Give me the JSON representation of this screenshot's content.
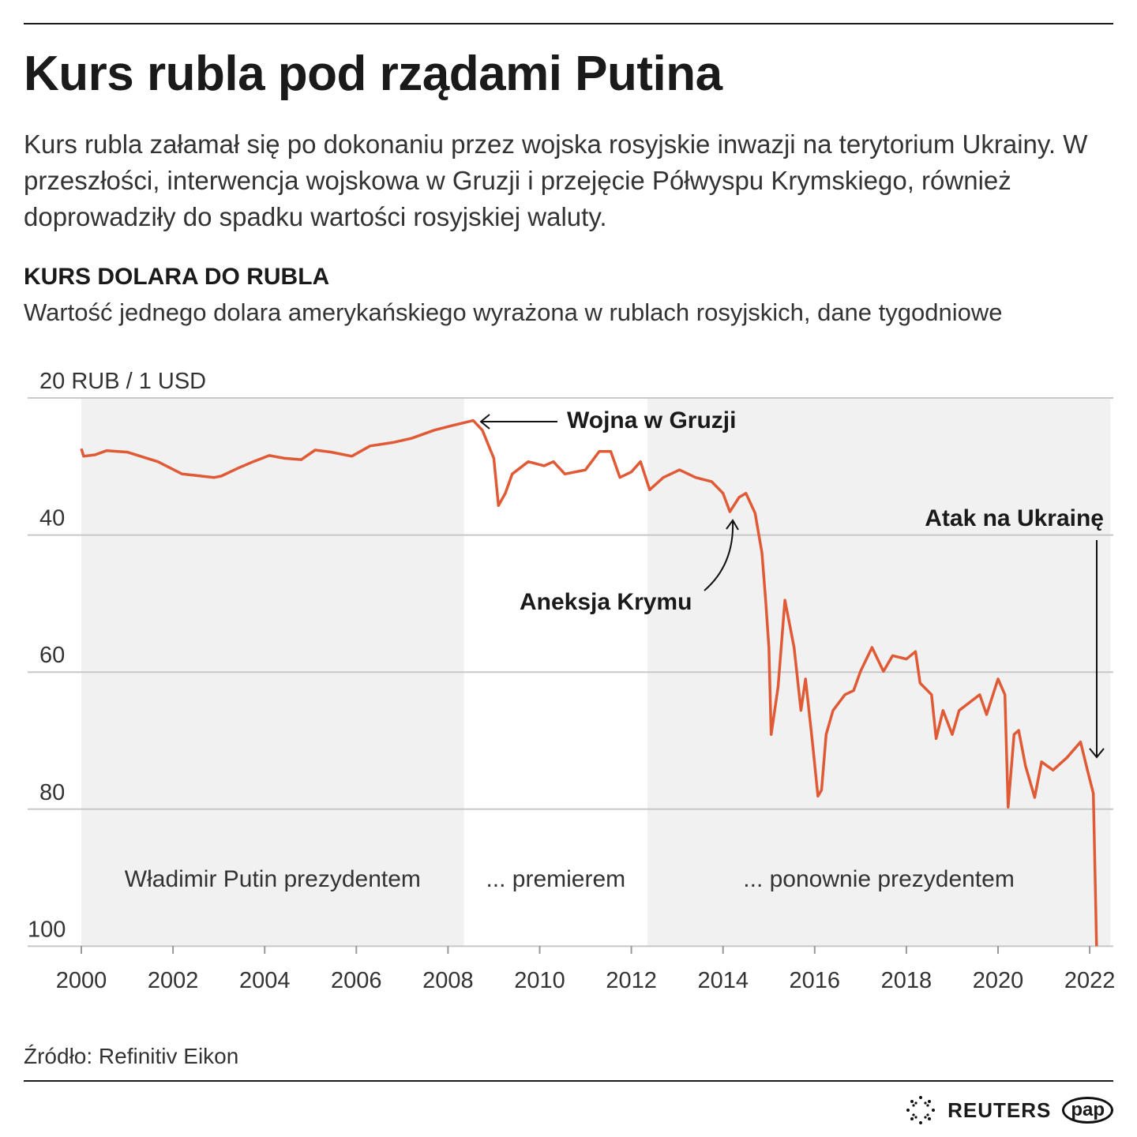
{
  "title": "Kurs rubla pod rządami Putina",
  "lead": "Kurs rubla załamał się po dokonaniu przez wojska rosyjskie inwazji na terytorium Ukrainy. W przeszłości, interwencja wojskowa w Gruzji i przejęcie Półwyspu Krymskiego, również doprowadziły do spadku wartości rosyjskiej waluty.",
  "source": "Źródło: Refinitiv Eikon",
  "logos": {
    "reuters": "REUTERS",
    "pap": "pap"
  },
  "colors": {
    "line": "#e05a35",
    "shade": "#f1f1f1",
    "grid": "#c8c8c8"
  },
  "chart_data": {
    "type": "line",
    "title": "KURS DOLARA DO RUBLA",
    "subtitle": "Wartość jednego dolara amerykańskiego wyrażona w rublach rosyjskich, dane tygodniowe",
    "y_unit_label": "20 RUB / 1 USD",
    "ylim": [
      20,
      100
    ],
    "y_inverted": true,
    "y_ticks": [
      {
        "value": 20,
        "label": "20 RUB / 1 USD"
      },
      {
        "value": 40,
        "label": "40"
      },
      {
        "value": 60,
        "label": "60"
      },
      {
        "value": 80,
        "label": "80"
      },
      {
        "value": 100,
        "label": "100"
      }
    ],
    "xlim": [
      2000,
      2022.45
    ],
    "x_ticks": [
      "2000",
      "2002",
      "2004",
      "2006",
      "2008",
      "2010",
      "2012",
      "2014",
      "2016",
      "2018",
      "2020",
      "2022"
    ],
    "grid": true,
    "periods": [
      {
        "label": "Władimir Putin prezydentem",
        "from": 2000,
        "to": 2008.35,
        "shaded": true
      },
      {
        "label": "... premierem",
        "from": 2008.35,
        "to": 2012.35,
        "shaded": false
      },
      {
        "label": "... ponownie prezydentem",
        "from": 2012.35,
        "to": 2022.45,
        "shaded": true
      }
    ],
    "annotations": [
      {
        "label": "Wojna w Gruzji",
        "x": 2008.6,
        "y": 23.3
      },
      {
        "label": "Aneksja Krymu",
        "x": 2014.2,
        "y": 36.6
      },
      {
        "label": "Atak na Ukrainę",
        "x": 2022.15,
        "y": 74
      }
    ],
    "series": [
      {
        "x": [
          2000.0,
          2000.05,
          2000.3,
          2000.55,
          2001.0,
          2001.67,
          2002.2,
          2002.9,
          2003.05,
          2003.4,
          2003.75,
          2004.1,
          2004.43,
          2004.8,
          2005.1,
          2005.45,
          2005.9,
          2006.3,
          2006.8,
          2007.2,
          2007.7,
          2008.05,
          2008.55,
          2008.75,
          2009.0,
          2009.1,
          2009.25,
          2009.4,
          2009.75,
          2010.1,
          2010.3,
          2010.55,
          2011.0,
          2011.3,
          2011.55,
          2011.75,
          2012.0,
          2012.2,
          2012.4,
          2012.7,
          2013.05,
          2013.4,
          2013.75,
          2014.0,
          2014.15,
          2014.35,
          2014.5,
          2014.7,
          2014.85,
          2014.93,
          2015.0,
          2015.05,
          2015.2,
          2015.35,
          2015.55,
          2015.7,
          2015.8,
          2015.95,
          2016.07,
          2016.15,
          2016.25,
          2016.4,
          2016.66,
          2016.85,
          2017.0,
          2017.25,
          2017.5,
          2017.7,
          2018.0,
          2018.2,
          2018.3,
          2018.55,
          2018.65,
          2018.8,
          2019.0,
          2019.15,
          2019.6,
          2019.75,
          2020.0,
          2020.15,
          2020.22,
          2020.35,
          2020.45,
          2020.6,
          2020.8,
          2020.95,
          2021.2,
          2021.5,
          2021.8,
          2021.95,
          2022.08,
          2022.15
        ],
        "values": [
          27.4,
          28.5,
          28.3,
          27.7,
          27.9,
          29.3,
          31.1,
          31.6,
          31.4,
          30.3,
          29.3,
          28.4,
          28.8,
          29.0,
          27.6,
          27.9,
          28.5,
          27.0,
          26.5,
          25.9,
          24.7,
          24.1,
          23.3,
          24.7,
          28.8,
          35.7,
          33.9,
          31.1,
          29.3,
          29.9,
          29.3,
          31.1,
          30.5,
          27.8,
          27.8,
          31.6,
          30.8,
          29.3,
          33.4,
          31.6,
          30.5,
          31.6,
          32.2,
          33.9,
          36.6,
          34.5,
          33.9,
          36.8,
          42.6,
          49.5,
          56.4,
          69.1,
          62.2,
          49.5,
          56.4,
          65.6,
          61.0,
          70.2,
          78.1,
          77.2,
          69.1,
          65.6,
          63.3,
          62.7,
          59.9,
          56.4,
          59.9,
          57.6,
          58.1,
          57.0,
          61.6,
          63.3,
          69.7,
          65.6,
          69.1,
          65.6,
          63.3,
          66.2,
          61.0,
          63.3,
          79.7,
          69.1,
          68.5,
          73.7,
          78.3,
          73.1,
          74.3,
          72.5,
          70.2,
          74.3,
          77.7,
          100
        ]
      }
    ]
  }
}
